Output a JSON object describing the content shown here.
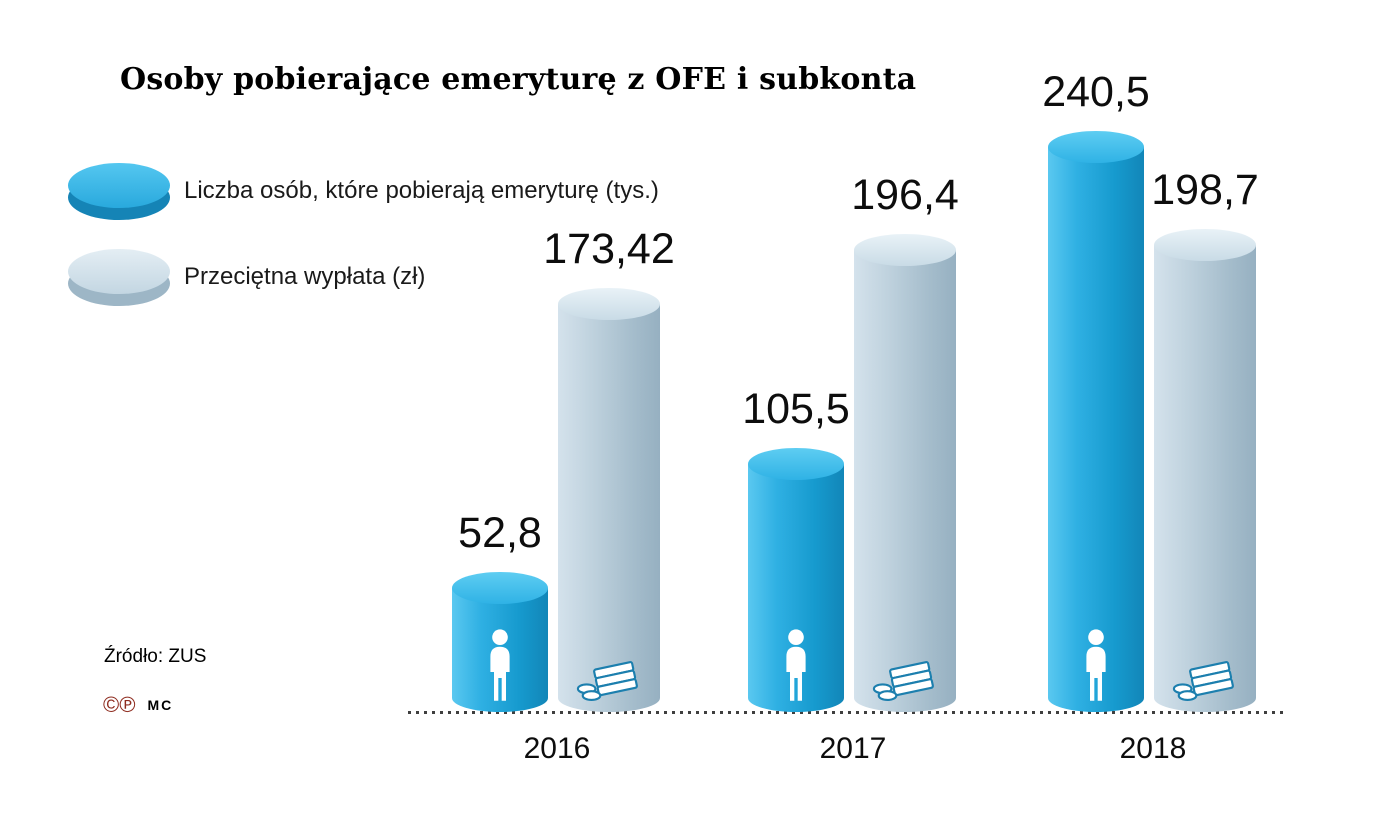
{
  "title": "Osoby pobierające emeryturę z OFE i subkonta",
  "source": "Źródło: ZUS",
  "credits": {
    "copyright_symbol": "©",
    "phonogram_symbol": "℗",
    "initials": "MC"
  },
  "colors": {
    "people_bar": "#29abe2",
    "payout_bar": "#bdd2e0",
    "credit_symbols": "#8e2b1e"
  },
  "chart_data": {
    "type": "bar",
    "title": "Osoby pobierające emeryturę z OFE i subkonta",
    "categories": [
      "2016",
      "2017",
      "2018"
    ],
    "series": [
      {
        "name": "Liczba osób, które pobierają emeryturę (tys.)",
        "values": [
          52.8,
          105.5,
          240.5
        ],
        "labels": [
          "52,8",
          "105,5",
          "240,5"
        ],
        "color": "#29abe2",
        "icon": "person-icon"
      },
      {
        "name": "Przeciętna wypłata (zł)",
        "values": [
          173.42,
          196.4,
          198.7
        ],
        "labels": [
          "173,42",
          "196,4",
          "198,7"
        ],
        "color": "#bdd2e0",
        "icon": "money-icon"
      }
    ],
    "ylim": [
      0,
      260
    ],
    "grid": false,
    "legend_position": "top-left",
    "source": "Źródło: ZUS"
  }
}
